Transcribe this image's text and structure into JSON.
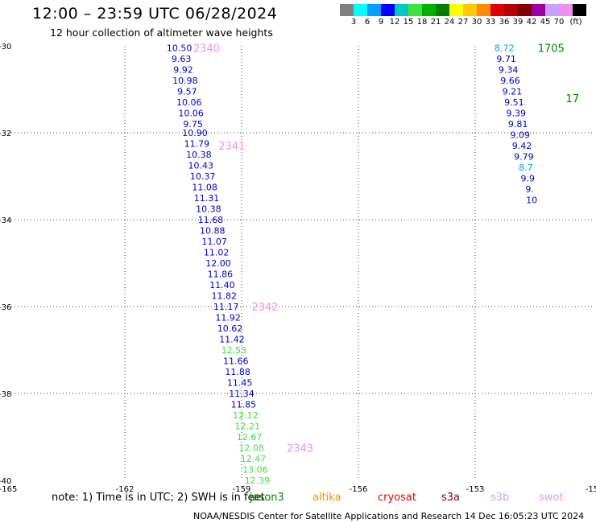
{
  "header": {
    "title": "12:00 – 23:59 UTC 06/28/2024",
    "subtitle": "12 hour collection of altimeter wave heights"
  },
  "legend": {
    "colors": [
      "#808080",
      "#00ffff",
      "#00a0ff",
      "#0000ff",
      "#00c8c8",
      "#40e040",
      "#00b000",
      "#008000",
      "#ffff00",
      "#ffc800",
      "#ff8c00",
      "#e00000",
      "#b40000",
      "#800000",
      "#a000a0",
      "#c8a0ff",
      "#f090f0",
      "#000000"
    ],
    "tick_labels": [
      "3",
      "6",
      "9",
      "12",
      "15",
      "18",
      "21",
      "24",
      "27",
      "30",
      "33",
      "36",
      "39",
      "42",
      "45",
      "70",
      "(ft)"
    ]
  },
  "axes": {
    "lon_labels": [
      "-165",
      "-162",
      "-159",
      "-156",
      "-153",
      "-15"
    ],
    "lat_labels": [
      "-30",
      "-32",
      "-34",
      "-36",
      "-38",
      "-40"
    ]
  },
  "tracks": [
    {
      "points": [
        {
          "lon": -160.6,
          "lat": -30.05,
          "v": "10.50",
          "c": "#0000cc"
        },
        {
          "lon": -160.55,
          "lat": -30.3,
          "v": "9.63",
          "c": "#0000cc"
        },
        {
          "lon": -160.5,
          "lat": -30.55,
          "v": "9.92",
          "c": "#0000cc"
        },
        {
          "lon": -160.45,
          "lat": -30.8,
          "v": "10.98",
          "c": "#0000cc"
        },
        {
          "lon": -160.4,
          "lat": -31.05,
          "v": "9.57",
          "c": "#0000cc"
        },
        {
          "lon": -160.35,
          "lat": -31.3,
          "v": "10.06",
          "c": "#0000cc"
        },
        {
          "lon": -160.3,
          "lat": -31.55,
          "v": "10.06",
          "c": "#0000cc"
        },
        {
          "lon": -160.25,
          "lat": -31.8,
          "v": "9.75",
          "c": "#0000cc"
        },
        {
          "lon": -160.2,
          "lat": -32.0,
          "v": "10.90",
          "c": "#0000cc"
        },
        {
          "lon": -160.15,
          "lat": -32.25,
          "v": "11.79",
          "c": "#0000cc"
        },
        {
          "lon": -160.1,
          "lat": -32.5,
          "v": "10.38",
          "c": "#0000cc"
        },
        {
          "lon": -160.05,
          "lat": -32.75,
          "v": "10.43",
          "c": "#0000cc"
        },
        {
          "lon": -160.0,
          "lat": -33.0,
          "v": "10.37",
          "c": "#0000cc"
        },
        {
          "lon": -159.95,
          "lat": -33.25,
          "v": "11.08",
          "c": "#0000cc"
        },
        {
          "lon": -159.9,
          "lat": -33.5,
          "v": "11.31",
          "c": "#0000cc"
        },
        {
          "lon": -159.85,
          "lat": -33.75,
          "v": "10.38",
          "c": "#0000cc"
        },
        {
          "lon": -159.8,
          "lat": -34.0,
          "v": "11.68",
          "c": "#0000cc"
        },
        {
          "lon": -159.75,
          "lat": -34.25,
          "v": "10.88",
          "c": "#0000cc"
        },
        {
          "lon": -159.7,
          "lat": -34.5,
          "v": "11.07",
          "c": "#0000cc"
        },
        {
          "lon": -159.65,
          "lat": -34.75,
          "v": "11.02",
          "c": "#0000cc"
        },
        {
          "lon": -159.6,
          "lat": -35.0,
          "v": "12.00",
          "c": "#0000cc"
        },
        {
          "lon": -159.55,
          "lat": -35.25,
          "v": "11.86",
          "c": "#0000cc"
        },
        {
          "lon": -159.5,
          "lat": -35.5,
          "v": "11.40",
          "c": "#0000cc"
        },
        {
          "lon": -159.45,
          "lat": -35.75,
          "v": "11.82",
          "c": "#0000cc"
        },
        {
          "lon": -159.4,
          "lat": -36.0,
          "v": "11.17",
          "c": "#0000cc"
        },
        {
          "lon": -159.35,
          "lat": -36.25,
          "v": "11.92",
          "c": "#0000cc"
        },
        {
          "lon": -159.3,
          "lat": -36.5,
          "v": "10.62",
          "c": "#0000cc"
        },
        {
          "lon": -159.25,
          "lat": -36.75,
          "v": "11.42",
          "c": "#0000cc"
        },
        {
          "lon": -159.2,
          "lat": -37.0,
          "v": "12.53",
          "c": "#40e040"
        },
        {
          "lon": -159.15,
          "lat": -37.25,
          "v": "11.66",
          "c": "#0000cc"
        },
        {
          "lon": -159.1,
          "lat": -37.5,
          "v": "11.88",
          "c": "#0000cc"
        },
        {
          "lon": -159.05,
          "lat": -37.75,
          "v": "11.45",
          "c": "#0000cc"
        },
        {
          "lon": -159.0,
          "lat": -38.0,
          "v": "11.34",
          "c": "#0000cc"
        },
        {
          "lon": -158.95,
          "lat": -38.25,
          "v": "11.85",
          "c": "#0000cc"
        },
        {
          "lon": -158.9,
          "lat": -38.5,
          "v": "12.12",
          "c": "#40e040"
        },
        {
          "lon": -158.85,
          "lat": -38.75,
          "v": "12.21",
          "c": "#40e040"
        },
        {
          "lon": -158.8,
          "lat": -39.0,
          "v": "12.67",
          "c": "#40e040"
        },
        {
          "lon": -158.75,
          "lat": -39.25,
          "v": "12.08",
          "c": "#40e040"
        },
        {
          "lon": -158.7,
          "lat": -39.5,
          "v": "12.47",
          "c": "#40e040"
        },
        {
          "lon": -158.65,
          "lat": -39.75,
          "v": "13.06",
          "c": "#40e040"
        },
        {
          "lon": -158.6,
          "lat": -40.0,
          "v": "12.39",
          "c": "#40e040"
        }
      ],
      "time_labels": [
        {
          "lon": -159.9,
          "lat": -30.05,
          "t": "2340",
          "c": "#f090f0"
        },
        {
          "lon": -159.25,
          "lat": -32.3,
          "t": "2341",
          "c": "#f090f0"
        },
        {
          "lon": -158.4,
          "lat": -36.0,
          "t": "2342",
          "c": "#f090f0"
        },
        {
          "lon": -157.5,
          "lat": -39.25,
          "t": "2343",
          "c": "#f090f0"
        }
      ]
    },
    {
      "points": [
        {
          "lon": -152.25,
          "lat": -30.05,
          "v": "8.72",
          "c": "#00a0ff"
        },
        {
          "lon": -152.2,
          "lat": -30.3,
          "v": "9.71",
          "c": "#0000cc"
        },
        {
          "lon": -152.15,
          "lat": -30.55,
          "v": "9.34",
          "c": "#0000cc"
        },
        {
          "lon": -152.1,
          "lat": -30.8,
          "v": "9.66",
          "c": "#0000cc"
        },
        {
          "lon": -152.05,
          "lat": -31.05,
          "v": "9.21",
          "c": "#0000cc"
        },
        {
          "lon": -152.0,
          "lat": -31.3,
          "v": "9.51",
          "c": "#0000cc"
        },
        {
          "lon": -151.95,
          "lat": -31.55,
          "v": "9.39",
          "c": "#0000cc"
        },
        {
          "lon": -151.9,
          "lat": -31.8,
          "v": "9.81",
          "c": "#0000cc"
        },
        {
          "lon": -151.85,
          "lat": -32.05,
          "v": "9.09",
          "c": "#0000cc"
        },
        {
          "lon": -151.8,
          "lat": -32.3,
          "v": "9.42",
          "c": "#0000cc"
        },
        {
          "lon": -151.75,
          "lat": -32.55,
          "v": "9.79",
          "c": "#0000cc"
        },
        {
          "lon": -151.7,
          "lat": -32.8,
          "v": "8.7",
          "c": "#00a0ff"
        },
        {
          "lon": -151.65,
          "lat": -33.05,
          "v": "9.9",
          "c": "#0000cc"
        },
        {
          "lon": -151.6,
          "lat": -33.3,
          "v": "9.",
          "c": "#0000cc"
        },
        {
          "lon": -151.55,
          "lat": -33.55,
          "v": "10",
          "c": "#0000cc"
        }
      ],
      "time_labels": [
        {
          "lon": -151.05,
          "lat": -30.05,
          "t": "1705",
          "c": "#008000"
        },
        {
          "lon": -150.5,
          "lat": -31.2,
          "t": "17",
          "c": "#008000"
        }
      ]
    }
  ],
  "note": "note:  1) Time is in UTC; 2) SWH is in feet",
  "satellites": [
    {
      "name": "jason3",
      "color": "#008000"
    },
    {
      "name": "altika",
      "color": "#ff8c00"
    },
    {
      "name": "cryosat",
      "color": "#e00000"
    },
    {
      "name": "s3a",
      "color": "#800000"
    },
    {
      "name": "s3b",
      "color": "#c8a0ff"
    },
    {
      "name": "swot",
      "color": "#f090f0"
    }
  ],
  "credit": "NOAA/NESDIS Center for Satellite Applications and Research    14 Dec 16:05:23 UTC 2024"
}
